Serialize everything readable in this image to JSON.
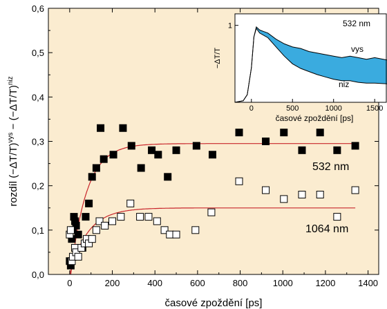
{
  "chart_data": {
    "type": "scatter",
    "xlabel": "časové zpoždění [ps]",
    "ylabel": {
      "prefix": "rozdíl (−ΔT/T)",
      "sup1": "vys",
      "mid": " − (−ΔT/T)",
      "sup2": "niz"
    },
    "xlim": [
      -100,
      1450
    ],
    "ylim": [
      0,
      0.6
    ],
    "xticks": [
      "0",
      "200",
      "400",
      "600",
      "800",
      "1000",
      "1200",
      "1400"
    ],
    "yticks": [
      "0,0",
      "0,1",
      "0,2",
      "0,3",
      "0,4",
      "0,5",
      "0,6"
    ],
    "background": "#fbecd0",
    "fit_color": "#c8242a",
    "series": [
      {
        "name": "532 nm",
        "marker": "filled-square",
        "points": [
          [
            0,
            0.03
          ],
          [
            5,
            0.02
          ],
          [
            10,
            0.08
          ],
          [
            15,
            0.1
          ],
          [
            20,
            0.13
          ],
          [
            25,
            0.12
          ],
          [
            30,
            0.11
          ],
          [
            40,
            0.09
          ],
          [
            60,
            0.06
          ],
          [
            75,
            0.13
          ],
          [
            90,
            0.16
          ],
          [
            105,
            0.22
          ],
          [
            125,
            0.24
          ],
          [
            145,
            0.33
          ],
          [
            160,
            0.26
          ],
          [
            205,
            0.27
          ],
          [
            250,
            0.33
          ],
          [
            290,
            0.29
          ],
          [
            335,
            0.24
          ],
          [
            385,
            0.28
          ],
          [
            415,
            0.27
          ],
          [
            460,
            0.22
          ],
          [
            500,
            0.28
          ],
          [
            595,
            0.29
          ],
          [
            670,
            0.27
          ],
          [
            795,
            0.32
          ],
          [
            920,
            0.3
          ],
          [
            1005,
            0.32
          ],
          [
            1090,
            0.28
          ],
          [
            1175,
            0.32
          ],
          [
            1255,
            0.28
          ],
          [
            1340,
            0.29
          ]
        ],
        "fit": {
          "amplitude": 0.295,
          "tau": 75,
          "start": 5,
          "end": 1340
        }
      },
      {
        "name": "1064 nm",
        "marker": "open-square",
        "points": [
          [
            0,
            0.09
          ],
          [
            5,
            0.1
          ],
          [
            10,
            0.03
          ],
          [
            15,
            0.04
          ],
          [
            25,
            0.06
          ],
          [
            30,
            0.05
          ],
          [
            40,
            0.04
          ],
          [
            55,
            0.06
          ],
          [
            70,
            0.07
          ],
          [
            80,
            0.08
          ],
          [
            90,
            0.07
          ],
          [
            105,
            0.08
          ],
          [
            125,
            0.1
          ],
          [
            140,
            0.12
          ],
          [
            165,
            0.11
          ],
          [
            200,
            0.12
          ],
          [
            240,
            0.13
          ],
          [
            285,
            0.16
          ],
          [
            330,
            0.13
          ],
          [
            370,
            0.13
          ],
          [
            410,
            0.12
          ],
          [
            445,
            0.1
          ],
          [
            470,
            0.09
          ],
          [
            500,
            0.09
          ],
          [
            590,
            0.1
          ],
          [
            665,
            0.14
          ],
          [
            795,
            0.21
          ],
          [
            920,
            0.19
          ],
          [
            1005,
            0.17
          ],
          [
            1090,
            0.18
          ],
          [
            1175,
            0.18
          ],
          [
            1255,
            0.13
          ],
          [
            1340,
            0.19
          ]
        ],
        "fit": {
          "amplitude": 0.15,
          "tau": 85,
          "start": 0,
          "end": 1340
        }
      }
    ],
    "inset": {
      "title": "532 nm",
      "ylabel": "−ΔT/T",
      "xlabel": "časové zpoždění [ps]",
      "xlim": [
        -200,
        1650
      ],
      "ylim": [
        0,
        1.15
      ],
      "xticks": [
        "0",
        "500",
        "1000",
        "1500"
      ],
      "yticks": [
        "1"
      ],
      "fill_color": "#3aabdf",
      "upper_label": "vys",
      "lower_label": "niz",
      "upper": [
        [
          -200,
          0.0
        ],
        [
          -100,
          0.02
        ],
        [
          -50,
          0.1
        ],
        [
          0,
          0.45
        ],
        [
          30,
          0.85
        ],
        [
          60,
          0.98
        ],
        [
          100,
          0.94
        ],
        [
          200,
          0.9
        ],
        [
          300,
          0.82
        ],
        [
          400,
          0.76
        ],
        [
          500,
          0.72
        ],
        [
          600,
          0.7
        ],
        [
          700,
          0.66
        ],
        [
          800,
          0.64
        ],
        [
          900,
          0.62
        ],
        [
          1000,
          0.6
        ],
        [
          1100,
          0.58
        ],
        [
          1200,
          0.6
        ],
        [
          1300,
          0.58
        ],
        [
          1400,
          0.56
        ],
        [
          1500,
          0.58
        ],
        [
          1650,
          0.55
        ]
      ],
      "lower": [
        [
          -200,
          0.0
        ],
        [
          -100,
          0.02
        ],
        [
          -50,
          0.1
        ],
        [
          0,
          0.45
        ],
        [
          30,
          0.85
        ],
        [
          60,
          0.96
        ],
        [
          100,
          0.9
        ],
        [
          200,
          0.84
        ],
        [
          300,
          0.72
        ],
        [
          400,
          0.6
        ],
        [
          500,
          0.5
        ],
        [
          600,
          0.44
        ],
        [
          700,
          0.4
        ],
        [
          800,
          0.36
        ],
        [
          900,
          0.33
        ],
        [
          1000,
          0.3
        ],
        [
          1100,
          0.28
        ],
        [
          1200,
          0.28
        ],
        [
          1300,
          0.26
        ],
        [
          1400,
          0.25
        ],
        [
          1500,
          0.25
        ],
        [
          1650,
          0.24
        ]
      ]
    }
  }
}
